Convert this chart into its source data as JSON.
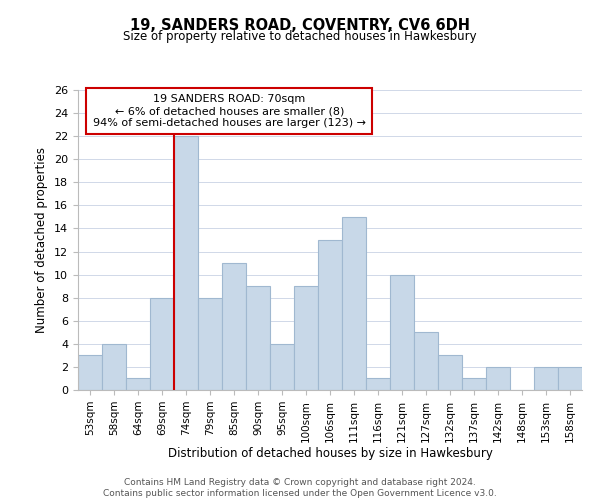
{
  "title": "19, SANDERS ROAD, COVENTRY, CV6 6DH",
  "subtitle": "Size of property relative to detached houses in Hawkesbury",
  "xlabel": "Distribution of detached houses by size in Hawkesbury",
  "ylabel": "Number of detached properties",
  "categories": [
    "53sqm",
    "58sqm",
    "64sqm",
    "69sqm",
    "74sqm",
    "79sqm",
    "85sqm",
    "90sqm",
    "95sqm",
    "100sqm",
    "106sqm",
    "111sqm",
    "116sqm",
    "121sqm",
    "127sqm",
    "132sqm",
    "137sqm",
    "142sqm",
    "148sqm",
    "153sqm",
    "158sqm"
  ],
  "values": [
    3,
    4,
    1,
    8,
    22,
    8,
    11,
    9,
    4,
    9,
    13,
    15,
    1,
    10,
    5,
    3,
    1,
    2,
    0,
    2,
    2
  ],
  "bar_color": "#c8d8e8",
  "bar_edge_color": "#a0b8d0",
  "vline_x": 3.5,
  "vline_color": "#cc0000",
  "annotation_title": "19 SANDERS ROAD: 70sqm",
  "annotation_line1": "← 6% of detached houses are smaller (8)",
  "annotation_line2": "94% of semi-detached houses are larger (123) →",
  "annotation_box_color": "#ffffff",
  "annotation_box_edge_color": "#cc0000",
  "ylim": [
    0,
    26
  ],
  "yticks": [
    0,
    2,
    4,
    6,
    8,
    10,
    12,
    14,
    16,
    18,
    20,
    22,
    24,
    26
  ],
  "footer_line1": "Contains HM Land Registry data © Crown copyright and database right 2024.",
  "footer_line2": "Contains public sector information licensed under the Open Government Licence v3.0.",
  "bg_color": "#ffffff",
  "grid_color": "#d0d8e8"
}
